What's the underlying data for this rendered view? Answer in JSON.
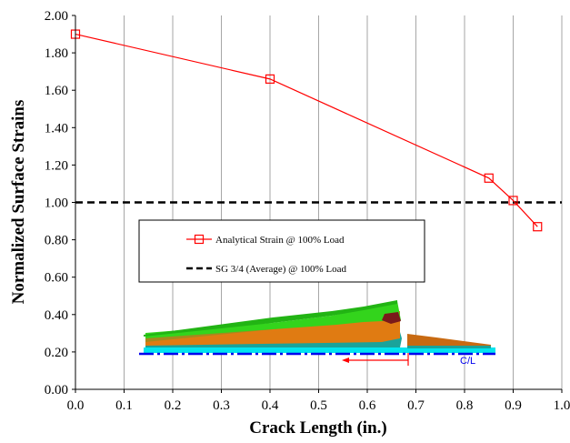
{
  "chart_data": {
    "type": "line",
    "xlabel": "Crack Length (in.)",
    "ylabel": "Normalized Surface Strains",
    "xlim": [
      0,
      1.0
    ],
    "ylim": [
      0,
      2.0
    ],
    "x_tick_labels": [
      "0.0",
      "0.1",
      "0.2",
      "0.3",
      "0.4",
      "0.5",
      "0.6",
      "0.7",
      "0.8",
      "0.9",
      "1.0"
    ],
    "y_tick_labels": [
      "0.00",
      "0.20",
      "0.40",
      "0.60",
      "0.80",
      "1.00",
      "1.20",
      "1.40",
      "1.60",
      "1.80",
      "2.00"
    ],
    "grid": "vertical",
    "series": [
      {
        "name": "Analytical Strain @ 100% Load",
        "color": "#ff0000",
        "marker": "square",
        "x": [
          0.0,
          0.4,
          0.85,
          0.9,
          0.95
        ],
        "y": [
          1.9,
          1.66,
          1.13,
          1.01,
          0.87
        ]
      },
      {
        "name": "SG 3/4 (Average) @ 100% Load",
        "color": "#000000",
        "style": "dashed",
        "x": [
          0.0,
          1.0
        ],
        "y": [
          1.0,
          1.0
        ]
      }
    ],
    "legend_position": "center-left",
    "inset_label": "C/L"
  }
}
